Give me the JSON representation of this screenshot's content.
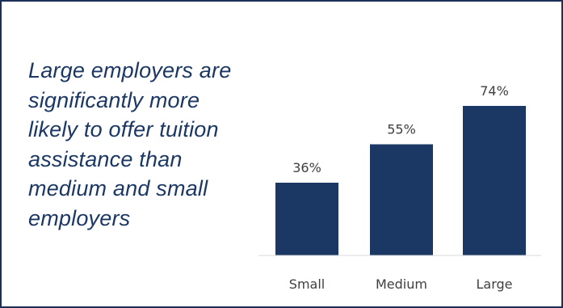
{
  "caption": "Large employers are\nsignificantly more\nlikely to offer tuition\nassistance than\nmedium and small\nemployers",
  "chart_data": {
    "type": "bar",
    "categories": [
      "Small",
      "Medium",
      "Large"
    ],
    "values": [
      36,
      55,
      74
    ],
    "labels": [
      "36%",
      "55%",
      "74%"
    ],
    "ylim": [
      0,
      100
    ],
    "grid": false,
    "legend": "none",
    "bar_color": "#1b3764"
  }
}
